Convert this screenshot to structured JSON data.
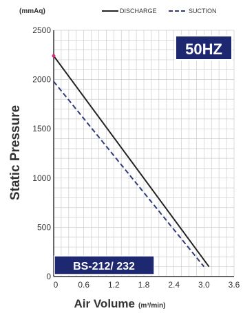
{
  "chart_data": {
    "type": "line",
    "y_unit": "(mmAq)",
    "xlabel": "Air Volume",
    "xlabel_unit": "(m³/min)",
    "ylabel": "Static Pressure",
    "xlim": [
      0,
      3.6
    ],
    "ylim": [
      0,
      2500
    ],
    "x_ticks": [
      0,
      0.6,
      1.2,
      1.8,
      2.4,
      3.0,
      3.6
    ],
    "x_tick_labels": [
      "0",
      "0.6",
      "1.2",
      "1.8",
      "2.4",
      "3.0",
      "3.6"
    ],
    "y_ticks": [
      0,
      500,
      1000,
      1500,
      2000,
      2500
    ],
    "y_tick_labels": [
      "0",
      "500",
      "1000",
      "1500",
      "2000",
      "2500"
    ],
    "grid": true,
    "legend_position": "top",
    "series": [
      {
        "name": "DISCHARGE",
        "style": "solid",
        "color": "#222222",
        "x": [
          0,
          3.1
        ],
        "y": [
          2240,
          100
        ]
      },
      {
        "name": "SUCTION",
        "style": "dashed",
        "color": "#2e3a7a",
        "x": [
          0,
          3.0
        ],
        "y": [
          1980,
          100
        ]
      }
    ],
    "frequency_badge": "50HZ",
    "model_badge": "BS-212/ 232"
  },
  "colors": {
    "badge_bg": "#1e2870",
    "grid": "#cccccc",
    "discharge": "#222222",
    "suction": "#2e3a7a",
    "start_marker": "#e0287a"
  }
}
